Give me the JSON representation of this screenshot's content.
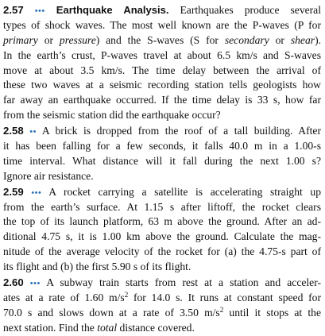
{
  "problems": [
    {
      "number": "2.57",
      "difficulty": "•••",
      "title": "Earthquake Analysis.",
      "lines": [
        "Earthquakes produce several",
        "types of shock waves. The most well known are the P-waves (P for",
        "primary or pressure) and the S-waves (S for secondary or shear).",
        "In the earth’s crust, P-waves travel at about 6.5 km/s and S-waves",
        "move at about 3.5 km/s. The time delay between the arrival of",
        "these two waves at a seismic recording station tells geologists how",
        "far away an earthquake occurred. If the time delay is 33 s, how far",
        "from the seismic station did the earthquake occur?"
      ]
    },
    {
      "number": "2.58",
      "difficulty": "••",
      "lines": [
        "A brick is dropped from the roof of a tall building. After",
        "it has been falling for a few seconds, it falls 40.0 m in a 1.00-s",
        "time interval. What distance will it fall during the next 1.00 s?",
        "Ignore air resistance."
      ]
    },
    {
      "number": "2.59",
      "difficulty": "•••",
      "lines": [
        "A rocket carrying a satellite is accelerating straight up",
        "from the earth’s surface. At 1.15 s after liftoff, the rocket clears",
        "the top of its launch platform, 63 m above the ground. After an ad-",
        "ditional 4.75 s, it is 1.00 km above the ground. Calculate the mag-",
        "nitude of the average velocity of the rocket for (a) the 4.75-s part of",
        "its flight and (b) the first 5.90 s of its flight."
      ]
    },
    {
      "number": "2.60",
      "difficulty": "•••",
      "lines": [
        "A subway train starts from rest at a station and acceler-",
        "ates at a rate of 1.60 m/s² for 14.0 s. It runs at constant speed for",
        "70.0 s and slows down at a rate of 3.50 m/s² until it stops at the",
        "next station. Find the total distance covered."
      ]
    }
  ]
}
